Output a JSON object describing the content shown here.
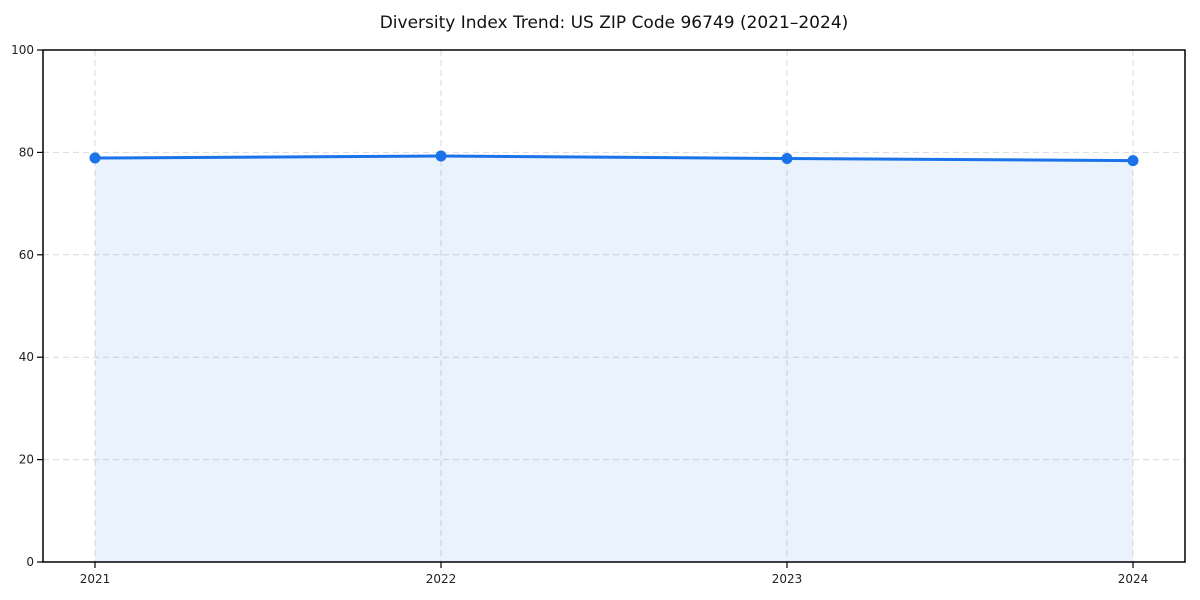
{
  "chart_data": {
    "type": "area",
    "title": "Diversity Index Trend: US ZIP Code 96749 (2021–2024)",
    "categories": [
      "2021",
      "2022",
      "2023",
      "2024"
    ],
    "values": [
      78.9,
      79.3,
      78.8,
      78.4
    ],
    "series_name": "Diversity Index",
    "xlabel": "",
    "ylabel": "",
    "ylim": [
      0,
      100
    ],
    "yticks": [
      0,
      20,
      40,
      60,
      80,
      100
    ],
    "grid": "dashed",
    "legend": "none",
    "fill_opacity": 0.09,
    "colors": {
      "line": "#1a73e8",
      "marker": "#1a73e8",
      "fill": "#1a73e8",
      "grid": "#d9d9d9",
      "axis": "#000000",
      "tick_label": "#222222",
      "title": "#111111",
      "background": "#ffffff"
    }
  }
}
